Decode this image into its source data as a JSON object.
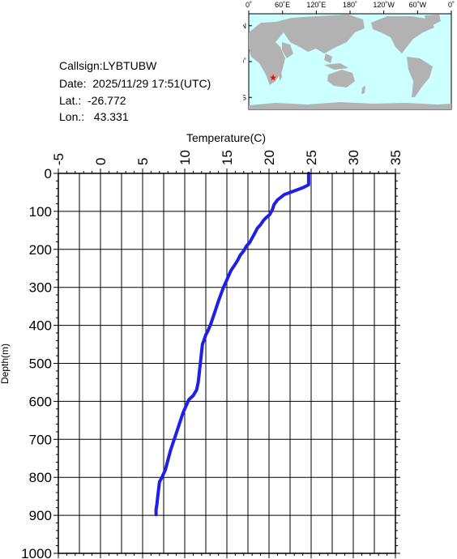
{
  "station": {
    "callsign": "Callsign:LYBTUBW",
    "date": "Date:  2025/11/29 17:51(UTC)",
    "lat": "Lat.:  -26.772",
    "lon": "Lon.:   43.331"
  },
  "map": {
    "top_labels": [
      "0˚",
      "60˚E",
      "120˚E",
      "180˚",
      "120˚W",
      "60˚W",
      "0˚"
    ],
    "left_labels": [
      "60˚N",
      "0˚",
      "60˚S"
    ],
    "ocean_color": "#ccffff",
    "land_color": "#b2b2b2",
    "marker_color": "#ff0000",
    "marker": {
      "lon": 43.331,
      "lat": -26.772
    }
  },
  "chart_data": {
    "type": "line",
    "xlabel": "Temperature(C)",
    "ylabel": "Depth(m)",
    "xlim": [
      -5,
      35
    ],
    "ylim": [
      1000,
      0
    ],
    "x_ticks": [
      "-5",
      "0",
      "5",
      "10",
      "15",
      "20",
      "25",
      "30",
      "35"
    ],
    "y_ticks": [
      "0",
      "100",
      "200",
      "300",
      "400",
      "500",
      "600",
      "700",
      "800",
      "900",
      "1000"
    ],
    "grid": true,
    "line_color": "#1f1fe6",
    "series": [
      {
        "points": [
          [
            24.7,
            0
          ],
          [
            24.7,
            30
          ],
          [
            24.0,
            38
          ],
          [
            23.0,
            46
          ],
          [
            21.8,
            56
          ],
          [
            21.0,
            70
          ],
          [
            20.6,
            82
          ],
          [
            20.4,
            95
          ],
          [
            20.1,
            108
          ],
          [
            19.6,
            118
          ],
          [
            19.3,
            125
          ],
          [
            19.0,
            135
          ],
          [
            18.6,
            145
          ],
          [
            18.3,
            158
          ],
          [
            18.0,
            170
          ],
          [
            17.7,
            182
          ],
          [
            17.3,
            192
          ],
          [
            17.0,
            204
          ],
          [
            16.6,
            215
          ],
          [
            16.3,
            228
          ],
          [
            15.9,
            242
          ],
          [
            15.5,
            255
          ],
          [
            15.2,
            270
          ],
          [
            14.9,
            285
          ],
          [
            14.6,
            300
          ],
          [
            14.3,
            318
          ],
          [
            14.0,
            336
          ],
          [
            13.7,
            356
          ],
          [
            13.4,
            376
          ],
          [
            13.1,
            396
          ],
          [
            12.8,
            412
          ],
          [
            12.5,
            425
          ],
          [
            12.3,
            438
          ],
          [
            12.1,
            450
          ],
          [
            12.0,
            470
          ],
          [
            11.9,
            490
          ],
          [
            11.8,
            510
          ],
          [
            11.7,
            530
          ],
          [
            11.6,
            550
          ],
          [
            11.4,
            570
          ],
          [
            11.0,
            585
          ],
          [
            10.5,
            595
          ],
          [
            10.3,
            605
          ],
          [
            10.1,
            615
          ],
          [
            9.8,
            630
          ],
          [
            9.5,
            650
          ],
          [
            9.2,
            670
          ],
          [
            8.9,
            690
          ],
          [
            8.6,
            710
          ],
          [
            8.3,
            730
          ],
          [
            8.0,
            755
          ],
          [
            7.7,
            780
          ],
          [
            7.3,
            800
          ],
          [
            7.0,
            812
          ],
          [
            6.9,
            830
          ],
          [
            6.8,
            850
          ],
          [
            6.7,
            870
          ],
          [
            6.6,
            885
          ],
          [
            6.6,
            898
          ]
        ]
      }
    ]
  }
}
